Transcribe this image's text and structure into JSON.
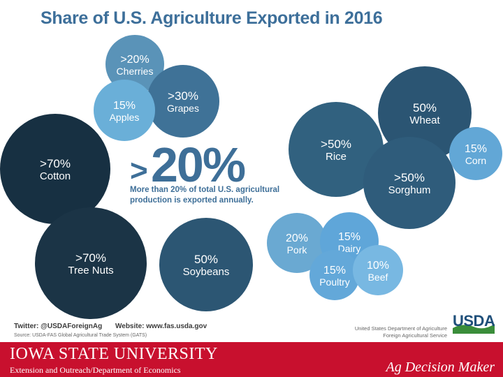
{
  "title": "Share of U.S. Agriculture Exported in 2016",
  "center": {
    "symbol": ">",
    "value": "20%",
    "description": "More than 20% of total U.S. agricultural production is exported annually."
  },
  "chart_data": {
    "type": "bubble",
    "title": "Share of U.S. Agriculture Exported in 2016",
    "items": [
      {
        "label": "Cherries",
        "pct_text": ">20%",
        "value": 20,
        "color": "#5a93b8"
      },
      {
        "label": "Grapes",
        "pct_text": ">30%",
        "value": 30,
        "color": "#3f7297"
      },
      {
        "label": "Apples",
        "pct_text": "15%",
        "value": 15,
        "color": "#6aafd8"
      },
      {
        "label": "Cotton",
        "pct_text": ">70%",
        "value": 70,
        "color": "#173042"
      },
      {
        "label": "Tree Nuts",
        "pct_text": ">70%",
        "value": 70,
        "color": "#1b3446"
      },
      {
        "label": "Soybeans",
        "pct_text": "50%",
        "value": 50,
        "color": "#2c5673"
      },
      {
        "label": "Wheat",
        "pct_text": "50%",
        "value": 50,
        "color": "#2b5573"
      },
      {
        "label": "Rice",
        "pct_text": ">50%",
        "value": 50,
        "color": "#31617f"
      },
      {
        "label": "Sorghum",
        "pct_text": ">50%",
        "value": 50,
        "color": "#2f5c7b"
      },
      {
        "label": "Corn",
        "pct_text": "15%",
        "value": 15,
        "color": "#62a7d6"
      },
      {
        "label": "Pork",
        "pct_text": "20%",
        "value": 20,
        "color": "#6aa9d2"
      },
      {
        "label": "Dairy",
        "pct_text": "15%",
        "value": 15,
        "color": "#5fa6d9"
      },
      {
        "label": "Poultry",
        "pct_text": "15%",
        "value": 15,
        "color": "#63a8d9"
      },
      {
        "label": "Beef",
        "pct_text": "10%",
        "value": 10,
        "color": "#78b8e2"
      }
    ]
  },
  "credits": {
    "twitter": "Twitter: @USDAForeignAg",
    "website": "Website: www.fas.usda.gov",
    "source": "Source: USDA-FAS Global Agricultural Trade System (GATS)",
    "usda": "USDA",
    "dept_line1": "United States Department of Agriculture",
    "dept_line2": "Foreign Agricultural Service"
  },
  "footer": {
    "university": "IOWA STATE UNIVERSITY",
    "extension": "Extension and Outreach/Department of Economics",
    "brand": "Ag Decision Maker",
    "bg": "#c8102e"
  }
}
